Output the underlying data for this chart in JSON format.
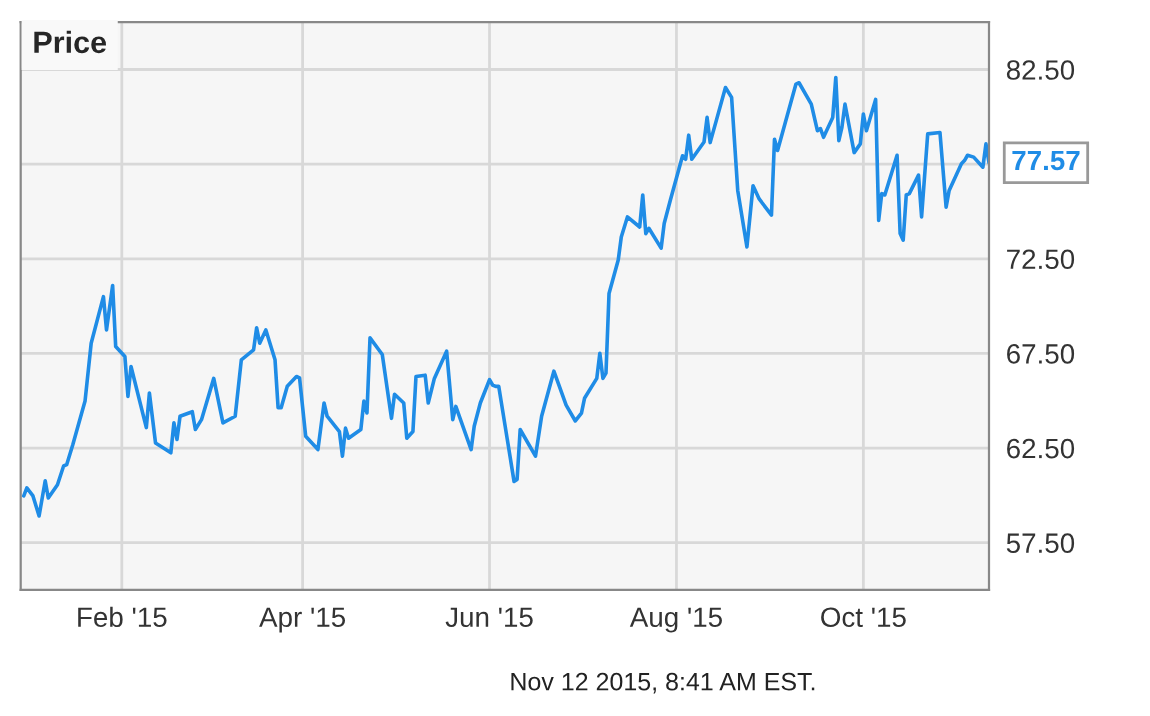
{
  "chart_data": {
    "type": "line",
    "title": "Price",
    "x": [
      "2014-12-31",
      "2015-01-01",
      "2015-01-03",
      "2015-01-05",
      "2015-01-07",
      "2015-01-08",
      "2015-01-11",
      "2015-01-13",
      "2015-01-14",
      "2015-01-16",
      "2015-01-20",
      "2015-01-22",
      "2015-01-26",
      "2015-01-27",
      "2015-01-29",
      "2015-01-30",
      "2015-02-02",
      "2015-02-03",
      "2015-02-04",
      "2015-02-09",
      "2015-02-10",
      "2015-02-12",
      "2015-02-17",
      "2015-02-18",
      "2015-02-19",
      "2015-02-20",
      "2015-02-24",
      "2015-02-25",
      "2015-02-27",
      "2015-03-03",
      "2015-03-06",
      "2015-03-10",
      "2015-03-12",
      "2015-03-16",
      "2015-03-17",
      "2015-03-18",
      "2015-03-20",
      "2015-03-23",
      "2015-03-24",
      "2015-03-25",
      "2015-03-27",
      "2015-03-30",
      "2015-03-31",
      "2015-04-02",
      "2015-04-06",
      "2015-04-08",
      "2015-04-09",
      "2015-04-13",
      "2015-04-14",
      "2015-04-15",
      "2015-04-16",
      "2015-04-20",
      "2015-04-21",
      "2015-04-22",
      "2015-04-23",
      "2015-04-27",
      "2015-04-30",
      "2015-05-01",
      "2015-05-04",
      "2015-05-05",
      "2015-05-07",
      "2015-05-08",
      "2015-05-11",
      "2015-05-12",
      "2015-05-14",
      "2015-05-18",
      "2015-05-20",
      "2015-05-21",
      "2015-05-26",
      "2015-05-27",
      "2015-05-29",
      "2015-06-01",
      "2015-06-02",
      "2015-06-03",
      "2015-06-04",
      "2015-06-09",
      "2015-06-10",
      "2015-06-11",
      "2015-06-16",
      "2015-06-18",
      "2015-06-22",
      "2015-06-26",
      "2015-06-29",
      "2015-07-01",
      "2015-07-02",
      "2015-07-06",
      "2015-07-07",
      "2015-07-08",
      "2015-07-09",
      "2015-07-10",
      "2015-07-13",
      "2015-07-14",
      "2015-07-16",
      "2015-07-20",
      "2015-07-21",
      "2015-07-22",
      "2015-07-23",
      "2015-07-27",
      "2015-07-28",
      "2015-07-30",
      "2015-08-03",
      "2015-08-04",
      "2015-08-05",
      "2015-08-06",
      "2015-08-10",
      "2015-08-11",
      "2015-08-12",
      "2015-08-14",
      "2015-08-17",
      "2015-08-19",
      "2015-08-21",
      "2015-08-24",
      "2015-08-26",
      "2015-08-28",
      "2015-09-01",
      "2015-09-02",
      "2015-09-03",
      "2015-09-09",
      "2015-09-10",
      "2015-09-14",
      "2015-09-16",
      "2015-09-17",
      "2015-09-18",
      "2015-09-21",
      "2015-09-22",
      "2015-09-23",
      "2015-09-24",
      "2015-09-25",
      "2015-09-28",
      "2015-09-30",
      "2015-10-01",
      "2015-10-02",
      "2015-10-05",
      "2015-10-06",
      "2015-10-07",
      "2015-10-08",
      "2015-10-12",
      "2015-10-13",
      "2015-10-14",
      "2015-10-15",
      "2015-10-16",
      "2015-10-19",
      "2015-10-20",
      "2015-10-22",
      "2015-10-26",
      "2015-10-28",
      "2015-10-29",
      "2015-11-02",
      "2015-11-03",
      "2015-11-04",
      "2015-11-06",
      "2015-11-09",
      "2015-11-10",
      "2015-11-11"
    ],
    "series": [
      {
        "color": "#1f8ce6",
        "values": [
          59.97,
          60.39,
          59.97,
          58.91,
          60.77,
          59.86,
          60.56,
          61.55,
          61.62,
          62.67,
          64.98,
          68.04,
          70.5,
          68.74,
          71.09,
          67.86,
          67.34,
          65.23,
          66.81,
          63.58,
          65.41,
          62.77,
          62.25,
          63.83,
          62.95,
          64.18,
          64.42,
          63.48,
          64.0,
          66.18,
          63.83,
          64.18,
          67.16,
          67.69,
          68.85,
          68.04,
          68.74,
          67.16,
          64.63,
          64.63,
          65.76,
          66.28,
          66.21,
          63.12,
          62.42,
          64.88,
          64.18,
          63.37,
          62.07,
          63.55,
          63.02,
          63.48,
          64.98,
          64.35,
          68.32,
          67.44,
          64.07,
          65.34,
          64.88,
          63.02,
          63.37,
          66.28,
          66.35,
          64.88,
          66.18,
          67.62,
          64.0,
          64.7,
          62.42,
          63.65,
          64.88,
          66.11,
          65.83,
          65.76,
          65.76,
          60.74,
          60.84,
          63.48,
          62.07,
          64.18,
          66.56,
          64.77,
          63.93,
          64.35,
          65.13,
          66.18,
          67.51,
          66.18,
          66.46,
          70.67,
          72.43,
          73.65,
          74.71,
          74.18,
          75.87,
          73.83,
          74.11,
          73.06,
          74.36,
          75.59,
          77.94,
          77.76,
          79.03,
          77.76,
          78.67,
          79.97,
          78.64,
          79.8,
          81.55,
          81.03,
          76.11,
          73.13,
          76.36,
          75.66,
          74.81,
          78.81,
          78.22,
          81.73,
          81.8,
          80.67,
          79.27,
          79.38,
          78.92,
          79.97,
          82.08,
          78.74,
          79.45,
          80.67,
          78.11,
          78.57,
          80.15,
          79.27,
          80.92,
          74.53,
          75.94,
          75.87,
          77.97,
          73.83,
          73.48,
          75.87,
          75.94,
          76.92,
          74.71,
          79.1,
          79.17,
          75.23,
          76.11,
          77.52,
          77.69,
          77.97,
          77.87,
          77.34,
          78.57,
          77.57
        ]
      }
    ],
    "xlim": [
      "2014-12-30",
      "2015-11-11"
    ],
    "xticks": [
      {
        "value": "2015-02-01",
        "label": "Feb '15"
      },
      {
        "value": "2015-04-01",
        "label": "Apr '15"
      },
      {
        "value": "2015-06-01",
        "label": "Jun '15"
      },
      {
        "value": "2015-08-01",
        "label": "Aug '15"
      },
      {
        "value": "2015-10-01",
        "label": "Oct '15"
      }
    ],
    "ylim": [
      55,
      85
    ],
    "yticks": [
      {
        "value": 57.5,
        "label": "57.50"
      },
      {
        "value": 62.5,
        "label": "62.50"
      },
      {
        "value": 67.5,
        "label": "67.50"
      },
      {
        "value": 72.5,
        "label": "72.50"
      },
      {
        "value": 77.5,
        "label": null
      },
      {
        "value": 82.5,
        "label": "82.50"
      }
    ],
    "grid": true,
    "annotations": [
      {
        "text": "77.57",
        "x": "2015-11-11",
        "y": 77.57
      },
      "Nov 12 2015, 8:41 AM EST."
    ]
  }
}
